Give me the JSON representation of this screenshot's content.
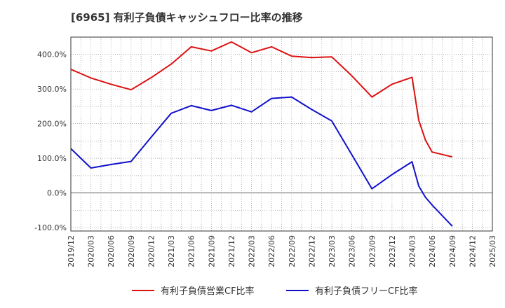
{
  "chart_data": {
    "type": "line",
    "title": "[6965]  有利子負債キャッシュフロー比率の推移",
    "x_labels": [
      "2019/12",
      "2020/03",
      "2020/06",
      "2020/09",
      "2020/12",
      "2021/03",
      "2021/06",
      "2021/09",
      "2021/12",
      "2022/03",
      "2022/06",
      "2022/09",
      "2022/12",
      "2023/03",
      "2023/06",
      "2023/09",
      "2023/12",
      "2024/03",
      "2024/06",
      "2024/09",
      "2024/12",
      "2025/03"
    ],
    "y_ticks": [
      -100,
      0,
      100,
      200,
      300,
      400
    ],
    "y_tick_labels": [
      "-100.0%",
      "0.0%",
      "100.0%",
      "200.0%",
      "300.0%",
      "400.0%"
    ],
    "ylim": [
      -110,
      450
    ],
    "grid": true,
    "legend_position": "bottom",
    "series": [
      {
        "name": "有利子負債営業CF比率",
        "color": "#dd1111",
        "points": [
          [
            0,
            357
          ],
          [
            1,
            332
          ],
          [
            2,
            314
          ],
          [
            3,
            298
          ],
          [
            4,
            333
          ],
          [
            5,
            372
          ],
          [
            6,
            422
          ],
          [
            7,
            410
          ],
          [
            8,
            436
          ],
          [
            9,
            405
          ],
          [
            10,
            422
          ],
          [
            11,
            395
          ],
          [
            12,
            391
          ],
          [
            13,
            393
          ],
          [
            14,
            338
          ],
          [
            15,
            277
          ],
          [
            16,
            314
          ],
          [
            17,
            334
          ],
          [
            17.33,
            210
          ],
          [
            17.67,
            152
          ],
          [
            18,
            118
          ],
          [
            19,
            104
          ]
        ]
      },
      {
        "name": "有利子負債フリーCF比率",
        "color": "#1111cc",
        "points": [
          [
            0,
            128
          ],
          [
            1,
            72
          ],
          [
            2,
            82
          ],
          [
            3,
            91
          ],
          [
            4,
            161
          ],
          [
            5,
            230
          ],
          [
            6,
            252
          ],
          [
            7,
            238
          ],
          [
            8,
            253
          ],
          [
            9,
            234
          ],
          [
            10,
            273
          ],
          [
            11,
            277
          ],
          [
            12,
            241
          ],
          [
            13,
            208
          ],
          [
            14,
            110
          ],
          [
            15,
            12
          ],
          [
            16,
            53
          ],
          [
            17,
            90
          ],
          [
            17.33,
            20
          ],
          [
            17.67,
            -13
          ],
          [
            18,
            -35
          ],
          [
            19,
            -96
          ]
        ]
      }
    ]
  }
}
